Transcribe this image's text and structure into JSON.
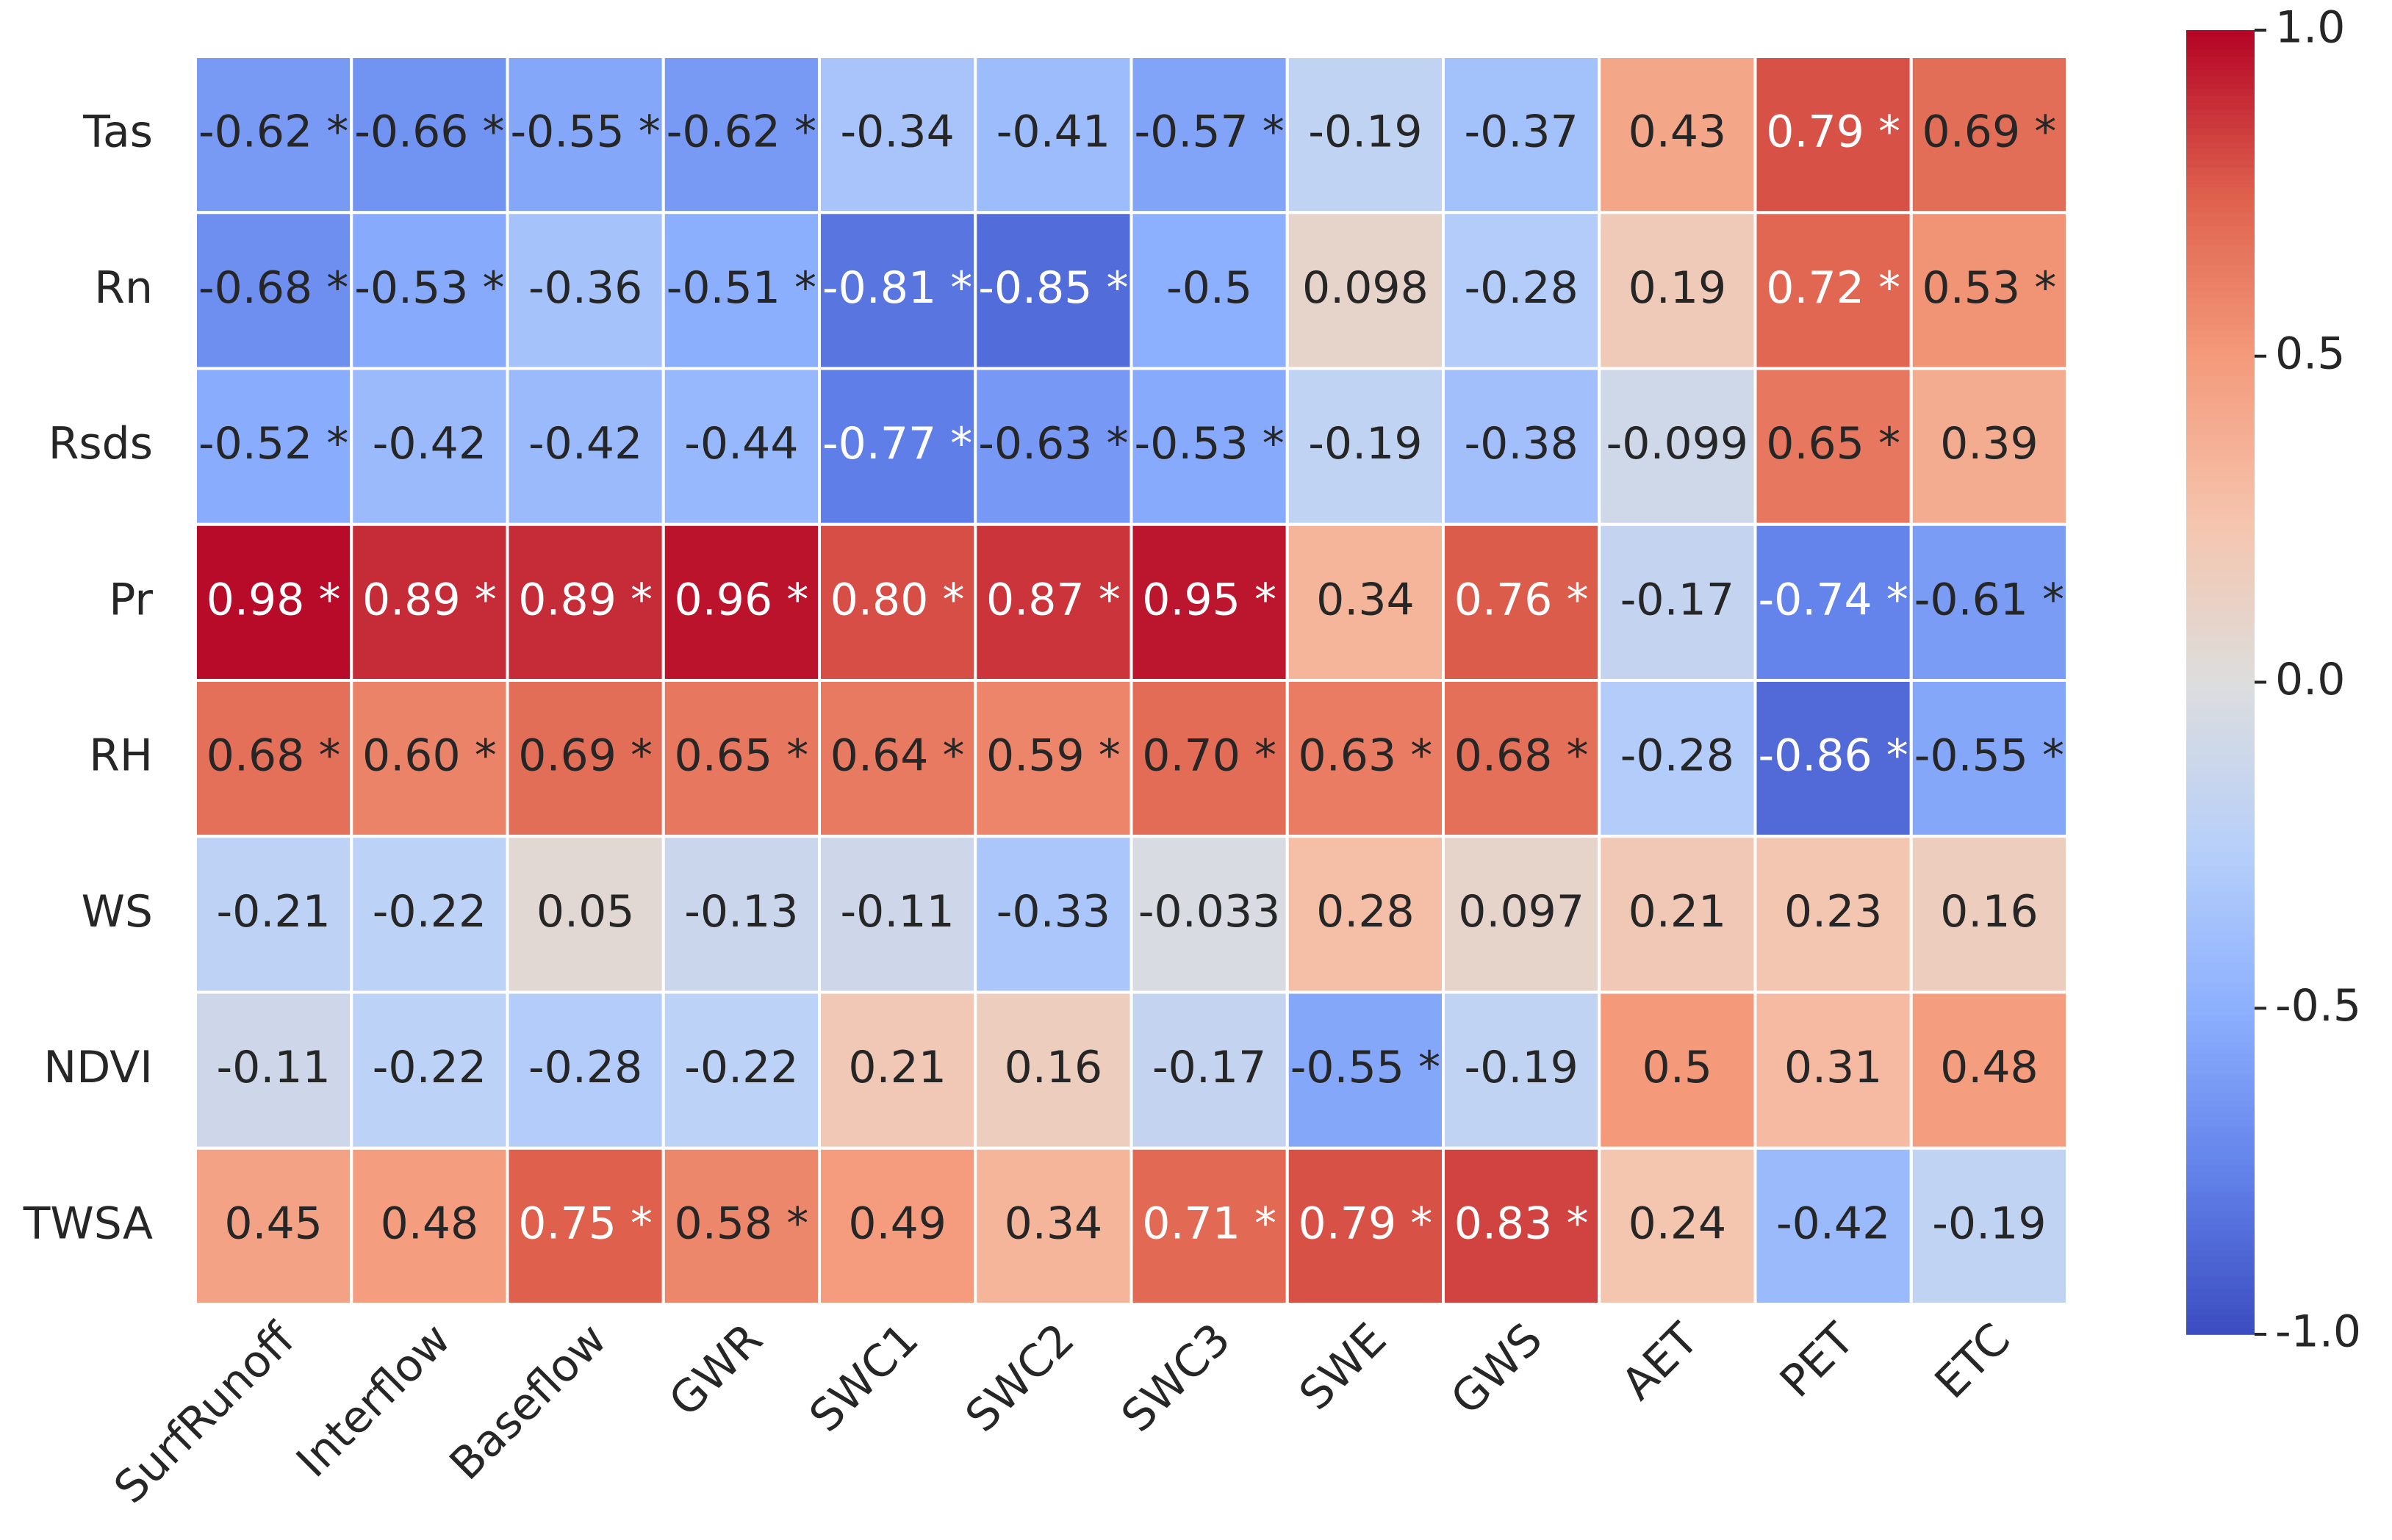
{
  "chart_data": {
    "type": "heatmap",
    "colormap": "coolwarm",
    "rows": [
      "Tas",
      "Rn",
      "Rsds",
      "Pr",
      "RH",
      "WS",
      "NDVI",
      "TWSA"
    ],
    "columns": [
      "SurfRunoff",
      "Interflow",
      "Baseflow",
      "GWR",
      "SWC1",
      "SWC2",
      "SWC3",
      "SWE",
      "GWS",
      "AET",
      "PET",
      "ETC"
    ],
    "values": [
      [
        -0.62,
        -0.66,
        -0.55,
        -0.62,
        -0.34,
        -0.41,
        -0.57,
        -0.19,
        -0.37,
        0.43,
        0.79,
        0.69
      ],
      [
        -0.68,
        -0.53,
        -0.36,
        -0.51,
        -0.81,
        -0.85,
        -0.5,
        0.098,
        -0.28,
        0.19,
        0.72,
        0.53
      ],
      [
        -0.52,
        -0.42,
        -0.42,
        -0.44,
        -0.77,
        -0.63,
        -0.53,
        -0.19,
        -0.38,
        -0.099,
        0.65,
        0.39
      ],
      [
        0.98,
        0.89,
        0.89,
        0.96,
        0.8,
        0.87,
        0.95,
        0.34,
        0.76,
        -0.17,
        -0.74,
        -0.61
      ],
      [
        0.68,
        0.6,
        0.69,
        0.65,
        0.64,
        0.59,
        0.7,
        0.63,
        0.68,
        -0.28,
        -0.86,
        -0.55
      ],
      [
        -0.21,
        -0.22,
        0.05,
        -0.13,
        -0.11,
        -0.33,
        -0.033,
        0.28,
        0.097,
        0.21,
        0.23,
        0.16
      ],
      [
        -0.11,
        -0.22,
        -0.28,
        -0.22,
        0.21,
        0.16,
        -0.17,
        -0.55,
        -0.19,
        0.5,
        0.31,
        0.48
      ],
      [
        0.45,
        0.48,
        0.75,
        0.58,
        0.49,
        0.34,
        0.71,
        0.79,
        0.83,
        0.24,
        -0.42,
        -0.19
      ]
    ],
    "value_labels": [
      [
        "-0.62 *",
        "-0.66 *",
        "-0.55 *",
        "-0.62 *",
        "-0.34",
        "-0.41",
        "-0.57 *",
        "-0.19",
        "-0.37",
        "0.43",
        "0.79 *",
        "0.69 *"
      ],
      [
        "-0.68 *",
        "-0.53 *",
        "-0.36",
        "-0.51 *",
        "-0.81 *",
        "-0.85 *",
        "-0.5",
        "0.098",
        "-0.28",
        "0.19",
        "0.72 *",
        "0.53 *"
      ],
      [
        "-0.52 *",
        "-0.42",
        "-0.42",
        "-0.44",
        "-0.77 *",
        "-0.63 *",
        "-0.53 *",
        "-0.19",
        "-0.38",
        "-0.099",
        "0.65 *",
        "0.39"
      ],
      [
        "0.98 *",
        "0.89 *",
        "0.89 *",
        "0.96 *",
        "0.80 *",
        "0.87 *",
        "0.95 *",
        "0.34",
        "0.76 *",
        "-0.17",
        "-0.74 *",
        "-0.61 *"
      ],
      [
        "0.68 *",
        "0.60 *",
        "0.69 *",
        "0.65 *",
        "0.64 *",
        "0.59 *",
        "0.70 *",
        "0.63 *",
        "0.68 *",
        "-0.28",
        "-0.86 *",
        "-0.55 *"
      ],
      [
        "-0.21",
        "-0.22",
        "0.05",
        "-0.13",
        "-0.11",
        "-0.33",
        "-0.033",
        "0.28",
        "0.097",
        "0.21",
        "0.23",
        "0.16"
      ],
      [
        "-0.11",
        "-0.22",
        "-0.28",
        "-0.22",
        "0.21",
        "0.16",
        "-0.17",
        "-0.55 *",
        "-0.19",
        "0.5",
        "0.31",
        "0.48"
      ],
      [
        "0.45",
        "0.48",
        "0.75 *",
        "0.58 *",
        "0.49",
        "0.34",
        "0.71 *",
        "0.79 *",
        "0.83 *",
        "0.24",
        "-0.42",
        "-0.19"
      ]
    ],
    "clim": [
      -1,
      1
    ],
    "cticks": [
      {
        "value": -1,
        "label": "-1.0"
      },
      -0.5,
      {
        "value": 0,
        "label": "0.0"
      },
      0.5,
      {
        "value": 1,
        "label": "1.0"
      }
    ]
  }
}
